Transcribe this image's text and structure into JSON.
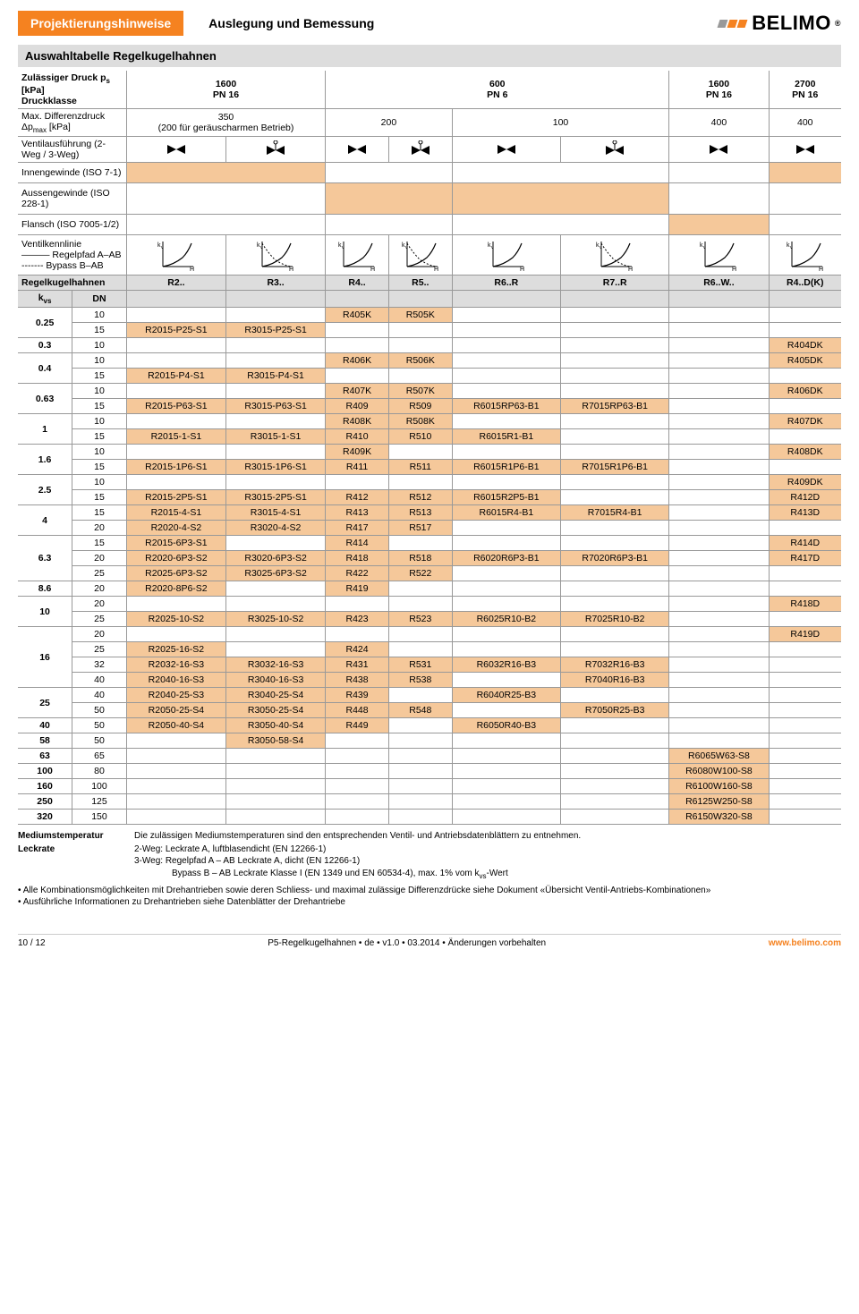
{
  "header": {
    "tab": "Projektierungshinweise",
    "title": "Auslegung und Bemessung",
    "brand": "BELIMO"
  },
  "section_title": "Auswahltabelle Regelkugelhahnen",
  "rows_meta": {
    "druck_label1": "Zulässiger Druck p",
    "druck_sub": "s",
    "druck_unit": " [kPa]",
    "druck_label2": "Druckklasse",
    "diff_label": "Max. Differenzdruck Δp",
    "diff_sub": "max",
    "diff_unit": " [kPa]",
    "diff_note1": "350",
    "diff_note2": "(200 für geräuscharmen Betrieb)",
    "ventil_label": "Ventilausführung (2-Weg / 3-Weg)",
    "innen_label": "Innengewinde (ISO 7-1)",
    "aussen_label": "Aussengewinde (ISO 228-1)",
    "flansch_label": "Flansch (ISO 7005-1/2)",
    "kennlinie_label1": "Ventilkennlinie",
    "kennlinie_label2": "——— Regelpfad A–AB",
    "kennlinie_label3": "------- Bypass B–AB",
    "regel_label": "Regelkugelhahnen",
    "kvs_label": "k",
    "kvs_sub": "vs",
    "dn_label": "DN"
  },
  "top_pressure": {
    "c1": "1600",
    "c1b": "PN 16",
    "c2": "600",
    "c2b": "PN 6",
    "c3": "1600",
    "c3b": "PN 16",
    "c4": "2700",
    "c4b": "PN 16"
  },
  "diff_vals": {
    "c1": "200",
    "c2": "100",
    "c3": "400",
    "c4": "400"
  },
  "regel_cols": [
    "R2..",
    "R3..",
    "R4..",
    "R5..",
    "R6..R",
    "R7..R",
    "R6..W..",
    "R4..D(K)"
  ],
  "table": [
    {
      "kvs": "0.25",
      "rows": [
        {
          "dn": "10",
          "c": [
            "",
            "",
            "R405K",
            "R505K",
            "",
            "",
            "",
            ""
          ],
          "hi": [
            0,
            0,
            1,
            1,
            0,
            0,
            0,
            0
          ]
        },
        {
          "dn": "15",
          "c": [
            "R2015-P25-S1",
            "R3015-P25-S1",
            "",
            "",
            "",
            "",
            "",
            ""
          ],
          "hi": [
            1,
            1,
            0,
            0,
            0,
            0,
            0,
            0
          ]
        }
      ]
    },
    {
      "kvs": "0.3",
      "rows": [
        {
          "dn": "10",
          "c": [
            "",
            "",
            "",
            "",
            "",
            "",
            "",
            "R404DK"
          ],
          "hi": [
            0,
            0,
            0,
            0,
            0,
            0,
            0,
            1
          ]
        }
      ]
    },
    {
      "kvs": "0.4",
      "rows": [
        {
          "dn": "10",
          "c": [
            "",
            "",
            "R406K",
            "R506K",
            "",
            "",
            "",
            "R405DK"
          ],
          "hi": [
            0,
            0,
            1,
            1,
            0,
            0,
            0,
            1
          ]
        },
        {
          "dn": "15",
          "c": [
            "R2015-P4-S1",
            "R3015-P4-S1",
            "",
            "",
            "",
            "",
            "",
            ""
          ],
          "hi": [
            1,
            1,
            0,
            0,
            0,
            0,
            0,
            0
          ]
        }
      ]
    },
    {
      "kvs": "0.63",
      "rows": [
        {
          "dn": "10",
          "c": [
            "",
            "",
            "R407K",
            "R507K",
            "",
            "",
            "",
            "R406DK"
          ],
          "hi": [
            0,
            0,
            1,
            1,
            0,
            0,
            0,
            1
          ]
        },
        {
          "dn": "15",
          "c": [
            "R2015-P63-S1",
            "R3015-P63-S1",
            "R409",
            "R509",
            "R6015RP63-B1",
            "R7015RP63-B1",
            "",
            ""
          ],
          "hi": [
            1,
            1,
            1,
            1,
            1,
            1,
            0,
            0
          ]
        }
      ]
    },
    {
      "kvs": "1",
      "rows": [
        {
          "dn": "10",
          "c": [
            "",
            "",
            "R408K",
            "R508K",
            "",
            "",
            "",
            "R407DK"
          ],
          "hi": [
            0,
            0,
            1,
            1,
            0,
            0,
            0,
            1
          ]
        },
        {
          "dn": "15",
          "c": [
            "R2015-1-S1",
            "R3015-1-S1",
            "R410",
            "R510",
            "R6015R1-B1",
            "",
            "",
            ""
          ],
          "hi": [
            1,
            1,
            1,
            1,
            1,
            0,
            0,
            0
          ]
        }
      ]
    },
    {
      "kvs": "1.6",
      "rows": [
        {
          "dn": "10",
          "c": [
            "",
            "",
            "R409K",
            "",
            "",
            "",
            "",
            "R408DK"
          ],
          "hi": [
            0,
            0,
            1,
            0,
            0,
            0,
            0,
            1
          ]
        },
        {
          "dn": "15",
          "c": [
            "R2015-1P6-S1",
            "R3015-1P6-S1",
            "R411",
            "R511",
            "R6015R1P6-B1",
            "R7015R1P6-B1",
            "",
            ""
          ],
          "hi": [
            1,
            1,
            1,
            1,
            1,
            1,
            0,
            0
          ]
        }
      ]
    },
    {
      "kvs": "2.5",
      "rows": [
        {
          "dn": "10",
          "c": [
            "",
            "",
            "",
            "",
            "",
            "",
            "",
            "R409DK"
          ],
          "hi": [
            0,
            0,
            0,
            0,
            0,
            0,
            0,
            1
          ]
        },
        {
          "dn": "15",
          "c": [
            "R2015-2P5-S1",
            "R3015-2P5-S1",
            "R412",
            "R512",
            "R6015R2P5-B1",
            "",
            "",
            "R412D"
          ],
          "hi": [
            1,
            1,
            1,
            1,
            1,
            0,
            0,
            1
          ]
        }
      ]
    },
    {
      "kvs": "4",
      "rows": [
        {
          "dn": "15",
          "c": [
            "R2015-4-S1",
            "R3015-4-S1",
            "R413",
            "R513",
            "R6015R4-B1",
            "R7015R4-B1",
            "",
            "R413D"
          ],
          "hi": [
            1,
            1,
            1,
            1,
            1,
            1,
            0,
            1
          ]
        },
        {
          "dn": "20",
          "c": [
            "R2020-4-S2",
            "R3020-4-S2",
            "R417",
            "R517",
            "",
            "",
            "",
            ""
          ],
          "hi": [
            1,
            1,
            1,
            1,
            0,
            0,
            0,
            0
          ]
        }
      ]
    },
    {
      "kvs": "6.3",
      "rows": [
        {
          "dn": "15",
          "c": [
            "R2015-6P3-S1",
            "",
            "R414",
            "",
            "",
            "",
            "",
            "R414D"
          ],
          "hi": [
            1,
            0,
            1,
            0,
            0,
            0,
            0,
            1
          ]
        },
        {
          "dn": "20",
          "c": [
            "R2020-6P3-S2",
            "R3020-6P3-S2",
            "R418",
            "R518",
            "R6020R6P3-B1",
            "R7020R6P3-B1",
            "",
            "R417D"
          ],
          "hi": [
            1,
            1,
            1,
            1,
            1,
            1,
            0,
            1
          ]
        },
        {
          "dn": "25",
          "c": [
            "R2025-6P3-S2",
            "R3025-6P3-S2",
            "R422",
            "R522",
            "",
            "",
            "",
            ""
          ],
          "hi": [
            1,
            1,
            1,
            1,
            0,
            0,
            0,
            0
          ]
        }
      ]
    },
    {
      "kvs": "8.6",
      "rows": [
        {
          "dn": "20",
          "c": [
            "R2020-8P6-S2",
            "",
            "R419",
            "",
            "",
            "",
            "",
            ""
          ],
          "hi": [
            1,
            0,
            1,
            0,
            0,
            0,
            0,
            0
          ]
        }
      ]
    },
    {
      "kvs": "10",
      "rows": [
        {
          "dn": "20",
          "c": [
            "",
            "",
            "",
            "",
            "",
            "",
            "",
            "R418D"
          ],
          "hi": [
            0,
            0,
            0,
            0,
            0,
            0,
            0,
            1
          ]
        },
        {
          "dn": "25",
          "c": [
            "R2025-10-S2",
            "R3025-10-S2",
            "R423",
            "R523",
            "R6025R10-B2",
            "R7025R10-B2",
            "",
            ""
          ],
          "hi": [
            1,
            1,
            1,
            1,
            1,
            1,
            0,
            0
          ]
        }
      ]
    },
    {
      "kvs": "16",
      "rows": [
        {
          "dn": "20",
          "c": [
            "",
            "",
            "",
            "",
            "",
            "",
            "",
            "R419D"
          ],
          "hi": [
            0,
            0,
            0,
            0,
            0,
            0,
            0,
            1
          ]
        },
        {
          "dn": "25",
          "c": [
            "R2025-16-S2",
            "",
            "R424",
            "",
            "",
            "",
            "",
            ""
          ],
          "hi": [
            1,
            0,
            1,
            0,
            0,
            0,
            0,
            0
          ]
        },
        {
          "dn": "32",
          "c": [
            "R2032-16-S3",
            "R3032-16-S3",
            "R431",
            "R531",
            "R6032R16-B3",
            "R7032R16-B3",
            "",
            ""
          ],
          "hi": [
            1,
            1,
            1,
            1,
            1,
            1,
            0,
            0
          ]
        },
        {
          "dn": "40",
          "c": [
            "R2040-16-S3",
            "R3040-16-S3",
            "R438",
            "R538",
            "",
            "R7040R16-B3",
            "",
            ""
          ],
          "hi": [
            1,
            1,
            1,
            1,
            0,
            1,
            0,
            0
          ]
        }
      ]
    },
    {
      "kvs": "25",
      "rows": [
        {
          "dn": "40",
          "c": [
            "R2040-25-S3",
            "R3040-25-S4",
            "R439",
            "",
            "R6040R25-B3",
            "",
            "",
            ""
          ],
          "hi": [
            1,
            1,
            1,
            0,
            1,
            0,
            0,
            0
          ]
        },
        {
          "dn": "50",
          "c": [
            "R2050-25-S4",
            "R3050-25-S4",
            "R448",
            "R548",
            "",
            "R7050R25-B3",
            "",
            ""
          ],
          "hi": [
            1,
            1,
            1,
            1,
            0,
            1,
            0,
            0
          ]
        }
      ]
    },
    {
      "kvs": "40",
      "rows": [
        {
          "dn": "50",
          "c": [
            "R2050-40-S4",
            "R3050-40-S4",
            "R449",
            "",
            "R6050R40-B3",
            "",
            "",
            ""
          ],
          "hi": [
            1,
            1,
            1,
            0,
            1,
            0,
            0,
            0
          ]
        }
      ]
    },
    {
      "kvs": "58",
      "rows": [
        {
          "dn": "50",
          "c": [
            "",
            "R3050-58-S4",
            "",
            "",
            "",
            "",
            "",
            ""
          ],
          "hi": [
            0,
            1,
            0,
            0,
            0,
            0,
            0,
            0
          ]
        }
      ]
    },
    {
      "kvs": "63",
      "rows": [
        {
          "dn": "65",
          "c": [
            "",
            "",
            "",
            "",
            "",
            "",
            "R6065W63-S8",
            ""
          ],
          "hi": [
            0,
            0,
            0,
            0,
            0,
            0,
            1,
            0
          ]
        }
      ]
    },
    {
      "kvs": "100",
      "rows": [
        {
          "dn": "80",
          "c": [
            "",
            "",
            "",
            "",
            "",
            "",
            "R6080W100-S8",
            ""
          ],
          "hi": [
            0,
            0,
            0,
            0,
            0,
            0,
            1,
            0
          ]
        }
      ]
    },
    {
      "kvs": "160",
      "rows": [
        {
          "dn": "100",
          "c": [
            "",
            "",
            "",
            "",
            "",
            "",
            "R6100W160-S8",
            ""
          ],
          "hi": [
            0,
            0,
            0,
            0,
            0,
            0,
            1,
            0
          ]
        }
      ]
    },
    {
      "kvs": "250",
      "rows": [
        {
          "dn": "125",
          "c": [
            "",
            "",
            "",
            "",
            "",
            "",
            "R6125W250-S8",
            ""
          ],
          "hi": [
            0,
            0,
            0,
            0,
            0,
            0,
            1,
            0
          ]
        }
      ]
    },
    {
      "kvs": "320",
      "rows": [
        {
          "dn": "150",
          "c": [
            "",
            "",
            "",
            "",
            "",
            "",
            "R6150W320-S8",
            ""
          ],
          "hi": [
            0,
            0,
            0,
            0,
            0,
            0,
            1,
            0
          ]
        }
      ]
    }
  ],
  "footnotes": {
    "medtemp_lbl": "Mediumstemperatur",
    "medtemp_val": "Die zulässigen Mediumstemperaturen sind den entsprechenden Ventil- und Antriebsdatenblättern zu entnehmen.",
    "leck_lbl": "Leckrate",
    "leck_l1": "2-Weg: Leckrate A, luftblasendicht (EN 12266-1)",
    "leck_l2": "3-Weg: Regelpfad A – AB Leckrate A, dicht (EN 12266-1)",
    "leck_l3": "Bypass B – AB Leckrate Klasse I (EN 1349 und EN 60534-4), max. 1% vom k",
    "leck_l3_sub": "vs",
    "leck_l3_tail": "-Wert",
    "b1": "Alle Kombinationsmöglichkeiten mit Drehantrieben sowie deren Schliess- und maximal zulässige Differenzdrücke siehe Dokument «Übersicht Ventil-Antriebs-Kombinationen»",
    "b2": "Ausführliche Informationen zu Drehantrieben siehe Datenblätter der Drehantriebe"
  },
  "footer": {
    "left": "10 / 12",
    "mid": "P5-Regelkugelhahnen • de • v1.0 • 03.2014 • Änderungen vorbehalten",
    "url": "www.belimo.com"
  },
  "colors": {
    "orange": "#f58220",
    "highlight": "#f5c89a",
    "gray_band": "#dddddd",
    "border": "#999999"
  }
}
